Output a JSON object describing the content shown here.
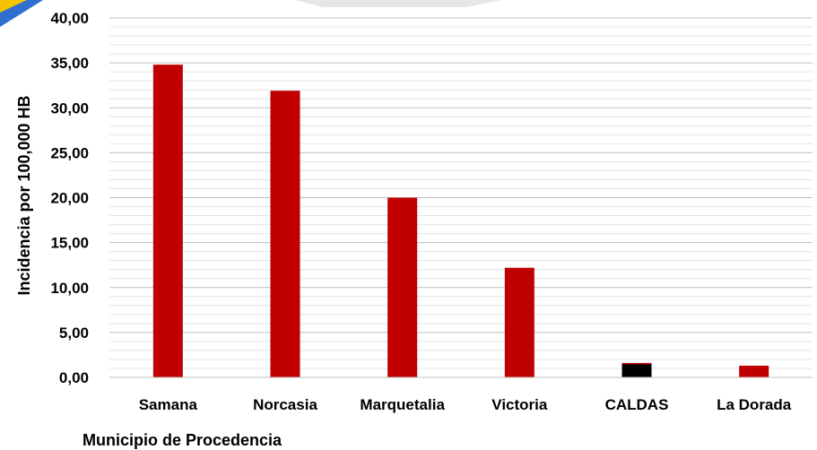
{
  "chart_data": {
    "type": "bar",
    "title": "",
    "xlabel": "Municipio de Procedencia",
    "ylabel": "Incidencia por 100,000 HB",
    "categories": [
      "Samana",
      "Norcasia",
      "Marquetalia",
      "Victoria",
      "CALDAS",
      "La Dorada"
    ],
    "values": [
      34.8,
      31.9,
      20.0,
      12.2,
      1.6,
      1.3
    ],
    "bar_colors": [
      "#c00000",
      "#c00000",
      "#c00000",
      "#c00000",
      "#000000",
      "#c00000"
    ],
    "ylim": [
      0,
      40
    ],
    "y_ticks": [
      "0,00",
      "5,00",
      "10,00",
      "15,00",
      "20,00",
      "25,00",
      "30,00",
      "35,00",
      "40,00"
    ],
    "grid": true,
    "legend": "none"
  }
}
